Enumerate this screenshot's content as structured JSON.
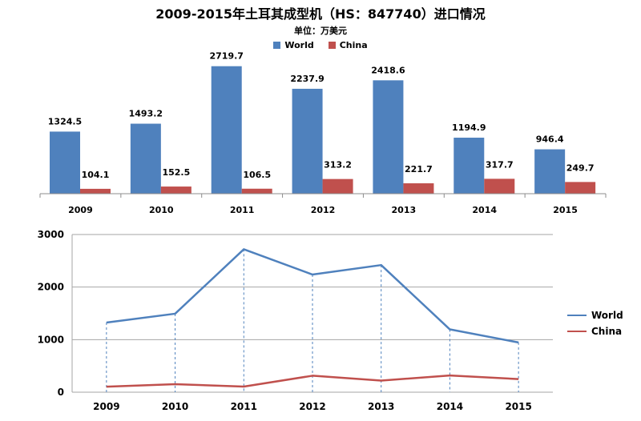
{
  "title": "2009-2015年土耳其成型机（HS：847740）进口情况",
  "subtitle": "单位：万美元",
  "legend": [
    {
      "name": "World",
      "color": "#4f81bd"
    },
    {
      "name": "China",
      "color": "#c0504d"
    }
  ],
  "chart_data": [
    {
      "type": "bar",
      "categories": [
        "2009",
        "2010",
        "2011",
        "2012",
        "2013",
        "2014",
        "2015"
      ],
      "series": [
        {
          "name": "World",
          "color": "#4f81bd",
          "values": [
            1324.5,
            1493.2,
            2719.7,
            2237.9,
            2418.6,
            1194.9,
            946.4
          ]
        },
        {
          "name": "China",
          "color": "#c0504d",
          "values": [
            104.1,
            152.5,
            106.5,
            313.2,
            221.7,
            317.7,
            249.7
          ]
        }
      ],
      "data_labels": true,
      "legend_position": "top",
      "ylim": [
        0,
        3000
      ]
    },
    {
      "type": "line",
      "categories": [
        "2009",
        "2010",
        "2011",
        "2012",
        "2013",
        "2014",
        "2015"
      ],
      "series": [
        {
          "name": "World",
          "color": "#4f81bd",
          "values": [
            1324.5,
            1493.2,
            2719.7,
            2237.9,
            2418.6,
            1194.9,
            946.4
          ]
        },
        {
          "name": "China",
          "color": "#c0504d",
          "values": [
            104.1,
            152.5,
            106.5,
            313.2,
            221.7,
            317.7,
            249.7
          ]
        }
      ],
      "yticks": [
        "0",
        "1000",
        "2000",
        "3000"
      ],
      "ylim": [
        0,
        3000
      ],
      "grid": true,
      "drop_lines": true,
      "legend_position": "right"
    }
  ]
}
